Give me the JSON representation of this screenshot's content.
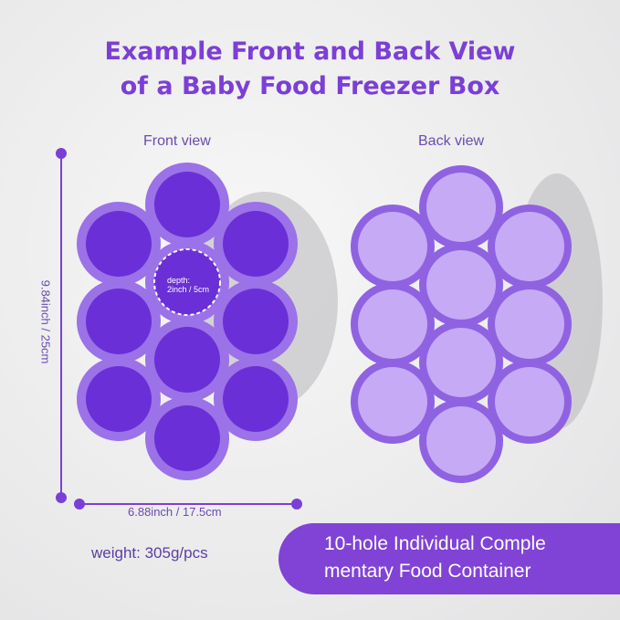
{
  "title": {
    "line1": "Example Front and Back View",
    "line2": "of a Baby Food Freezer Box"
  },
  "front_label": "Front view",
  "back_label": "Back view",
  "height_dim": "9.84inch / 25cm",
  "width_dim": "6.88inch / 17.5cm",
  "depth": {
    "line1": "depth:",
    "line2": "2inch / 5cm"
  },
  "weight": "weight:  305g/pcs",
  "banner": {
    "line1": "10-hole Individual Comple",
    "line2": "mentary Food Container"
  },
  "colors": {
    "accent": "#8043d6",
    "tray": "#9b72e8",
    "well": "#6a2fd6",
    "dome": "#c6aaf5"
  }
}
